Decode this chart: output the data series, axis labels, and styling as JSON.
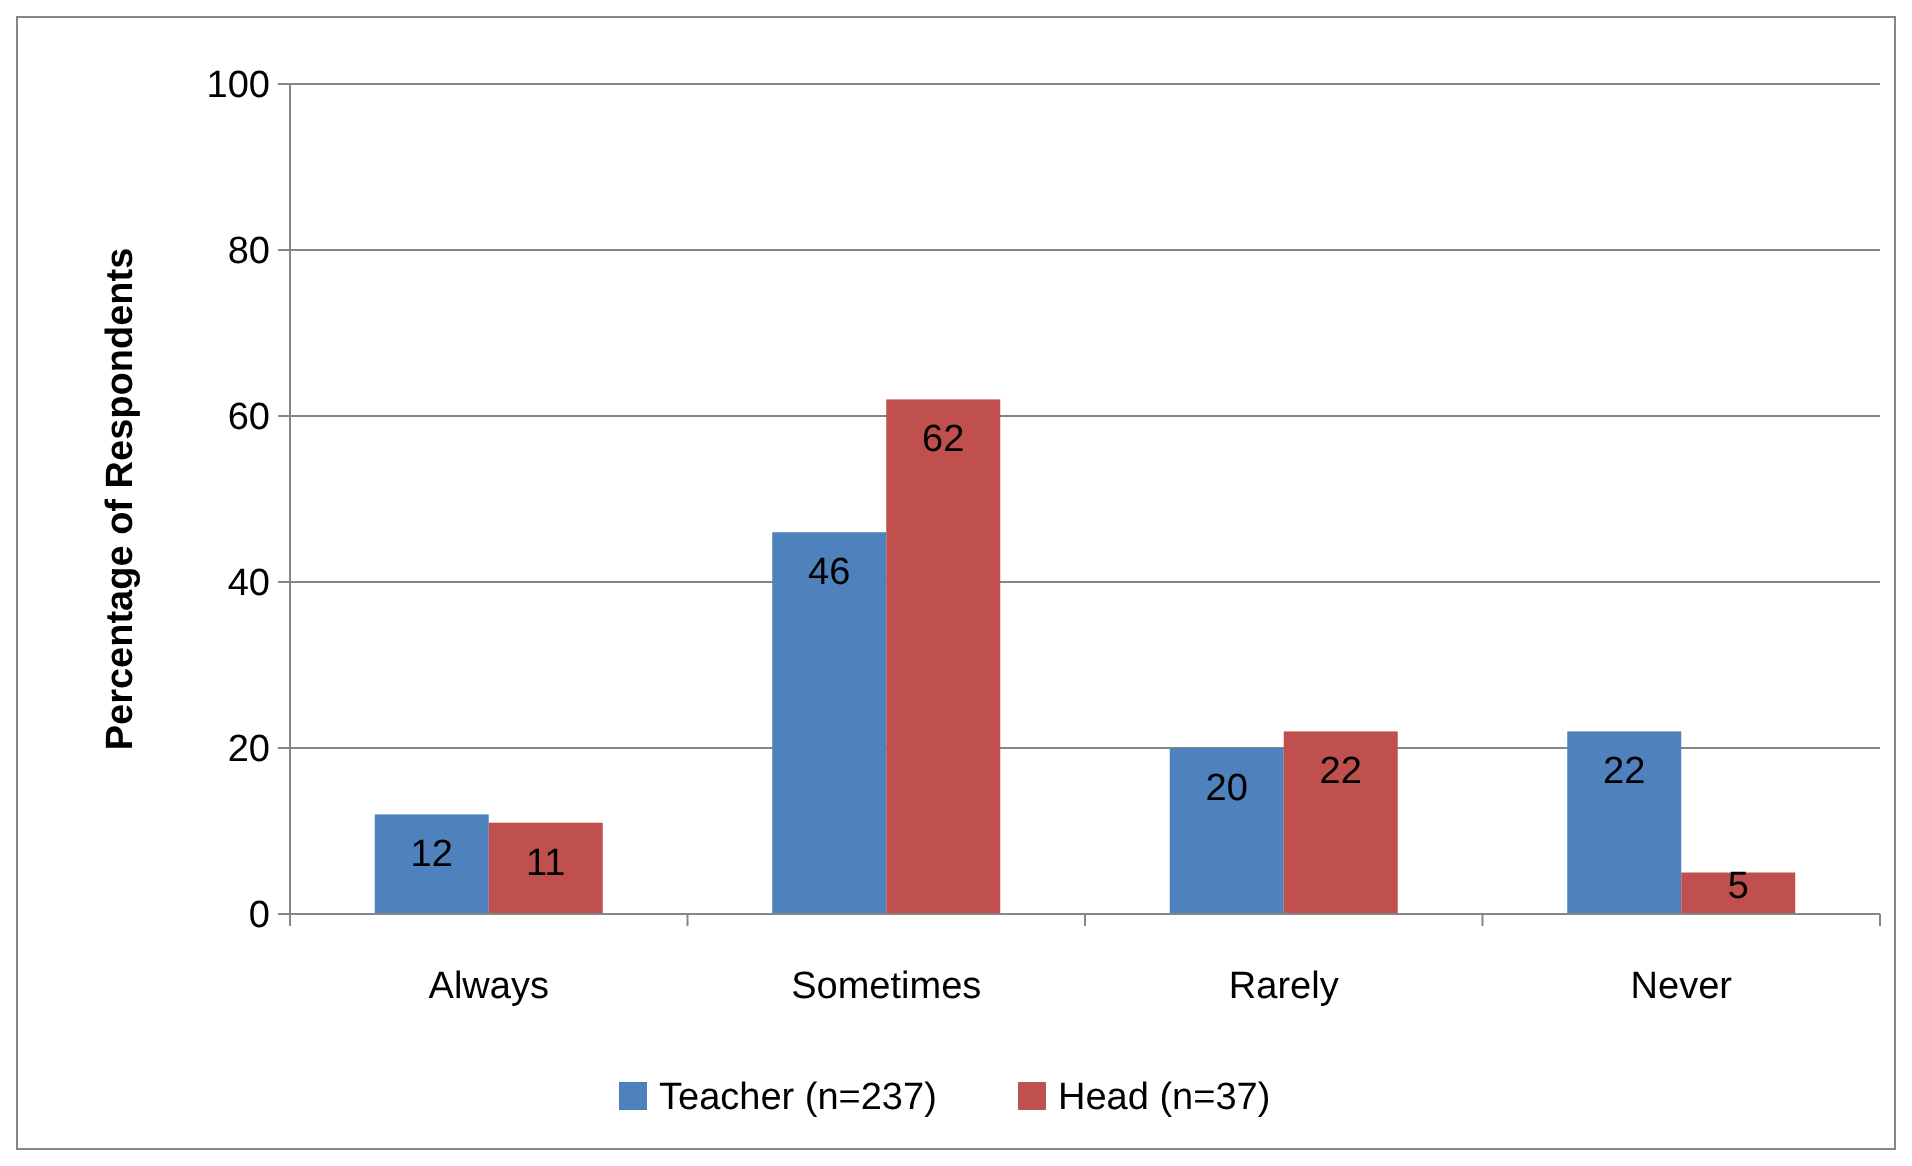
{
  "chart_data": {
    "type": "bar",
    "ylabel": "Percentage of Respondents",
    "categories": [
      "Always",
      "Sometimes",
      "Rarely",
      "Never"
    ],
    "series": [
      {
        "name": "Teacher (n=237)",
        "color": "#4f81bd",
        "values": [
          12,
          46,
          20,
          22
        ]
      },
      {
        "name": "Head (n=37)",
        "color": "#c0504d",
        "values": [
          11,
          62,
          22,
          5
        ]
      }
    ],
    "ylim": [
      0,
      100
    ],
    "yticks": [
      0,
      20,
      40,
      60,
      80,
      100
    ],
    "grid": "y",
    "legend": "bottom",
    "data_labels": true
  }
}
